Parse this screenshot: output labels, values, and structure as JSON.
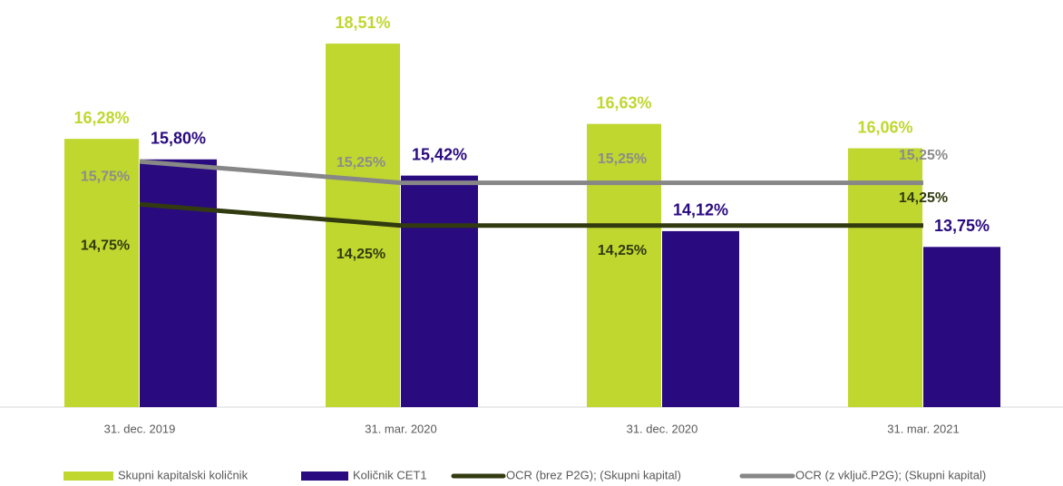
{
  "chart_data": {
    "type": "bar",
    "categories": [
      "31. dec. 2019",
      "31. mar. 2020",
      "31. dec. 2020",
      "31. mar. 2021"
    ],
    "ylim": [
      10,
      19
    ],
    "series": [
      {
        "name": "Skupni kapitalski količnik",
        "color": "#c0d72f",
        "kind": "bar",
        "values": [
          16.28,
          18.51,
          16.63,
          16.06
        ],
        "value_labels": [
          "16,28%",
          "18,51%",
          "16,63%",
          "16,06%"
        ]
      },
      {
        "name": "Količnik CET1",
        "color": "#2a0a7f",
        "kind": "bar",
        "values": [
          15.8,
          15.42,
          14.12,
          13.75
        ],
        "value_labels": [
          "15,80%",
          "15,42%",
          "14,12%",
          "13,75%"
        ]
      },
      {
        "name": "OCR (brez P2G); (Skupni kapital)",
        "color": "#323a10",
        "kind": "line",
        "values": [
          14.75,
          14.25,
          14.25,
          14.25
        ],
        "value_labels": [
          "14,75%",
          "14,25%",
          "14,25%",
          "14,25%"
        ]
      },
      {
        "name": "OCR (z vključ.P2G); (Skupni kapital)",
        "color": "#878787",
        "kind": "line",
        "values": [
          15.75,
          15.25,
          15.25,
          15.25
        ],
        "value_labels": [
          "15,75%",
          "15,25%",
          "15,25%",
          "15,25%"
        ]
      }
    ]
  }
}
